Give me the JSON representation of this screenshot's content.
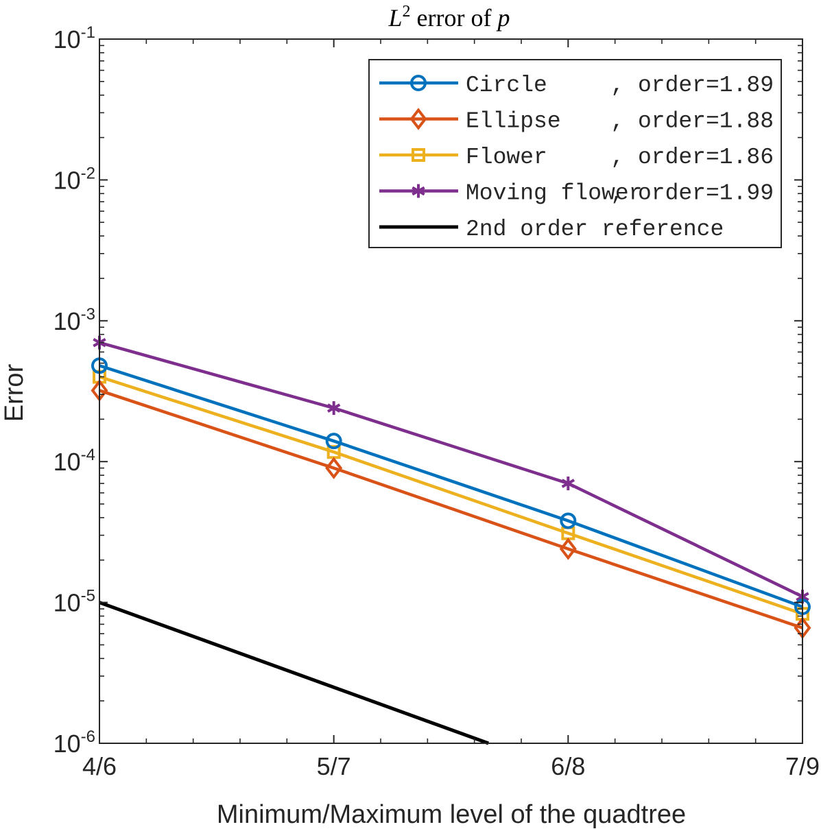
{
  "chart_data": {
    "type": "line",
    "title": {
      "var": "L",
      "sup": "2",
      "text": " error of ",
      "sym": "p"
    },
    "xlabel": "Minimum/Maximum level of the quadtree",
    "ylabel": "Error",
    "yscale": "log",
    "ylim": [
      1e-06,
      0.1
    ],
    "categories": [
      "4/6",
      "5/7",
      "6/8",
      "7/9"
    ],
    "yticks": [
      {
        "base": "10",
        "exp": "-6",
        "value": 1e-06
      },
      {
        "base": "10",
        "exp": "-5",
        "value": 1e-05
      },
      {
        "base": "10",
        "exp": "-4",
        "value": 0.0001
      },
      {
        "base": "10",
        "exp": "-3",
        "value": 0.001
      },
      {
        "base": "10",
        "exp": "-2",
        "value": 0.01
      },
      {
        "base": "10",
        "exp": "-1",
        "value": 0.1
      }
    ],
    "legend_position": "top-right",
    "series": [
      {
        "name": "Circle",
        "order_text": ", order=1.89",
        "color": "#0072BD",
        "marker": "circle",
        "x": [
          0,
          1,
          2,
          3
        ],
        "values": [
          0.00048,
          0.00014,
          3.8e-05,
          9.3e-06
        ]
      },
      {
        "name": "Ellipse",
        "order_text": ", order=1.88",
        "color": "#D95319",
        "marker": "diamond",
        "x": [
          0,
          1,
          2,
          3
        ],
        "values": [
          0.00032,
          9e-05,
          2.4e-05,
          6.6e-06
        ]
      },
      {
        "name": "Flower",
        "order_text": ", order=1.86",
        "color": "#EDB120",
        "marker": "square",
        "x": [
          0,
          1,
          2,
          3
        ],
        "values": [
          0.0004,
          0.000117,
          3.1e-05,
          8.3e-06
        ]
      },
      {
        "name": "Moving flower",
        "order_text": ", order=1.99",
        "color": "#7E2F8E",
        "marker": "asterisk",
        "x": [
          0,
          1,
          2,
          3
        ],
        "values": [
          0.0007,
          0.00024,
          7e-05,
          1.1e-05
        ]
      },
      {
        "name": "2nd order reference",
        "order_text": "",
        "color": "#000000",
        "marker": "none",
        "x": [
          0,
          1.66
        ],
        "values": [
          1e-05,
          1e-06
        ]
      }
    ]
  }
}
